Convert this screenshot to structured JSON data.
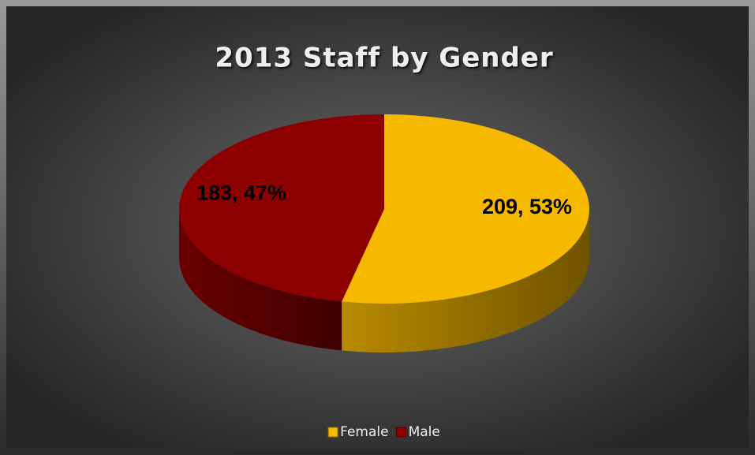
{
  "chart_data": {
    "type": "pie",
    "title": "2013 Staff by Gender",
    "categories": [
      "Female",
      "Male"
    ],
    "values": [
      209,
      183
    ],
    "value_labels": [
      "209, 53%",
      "183, 47%"
    ],
    "colors": [
      "#f7b900",
      "#8c0000"
    ],
    "legend": "bottom"
  }
}
